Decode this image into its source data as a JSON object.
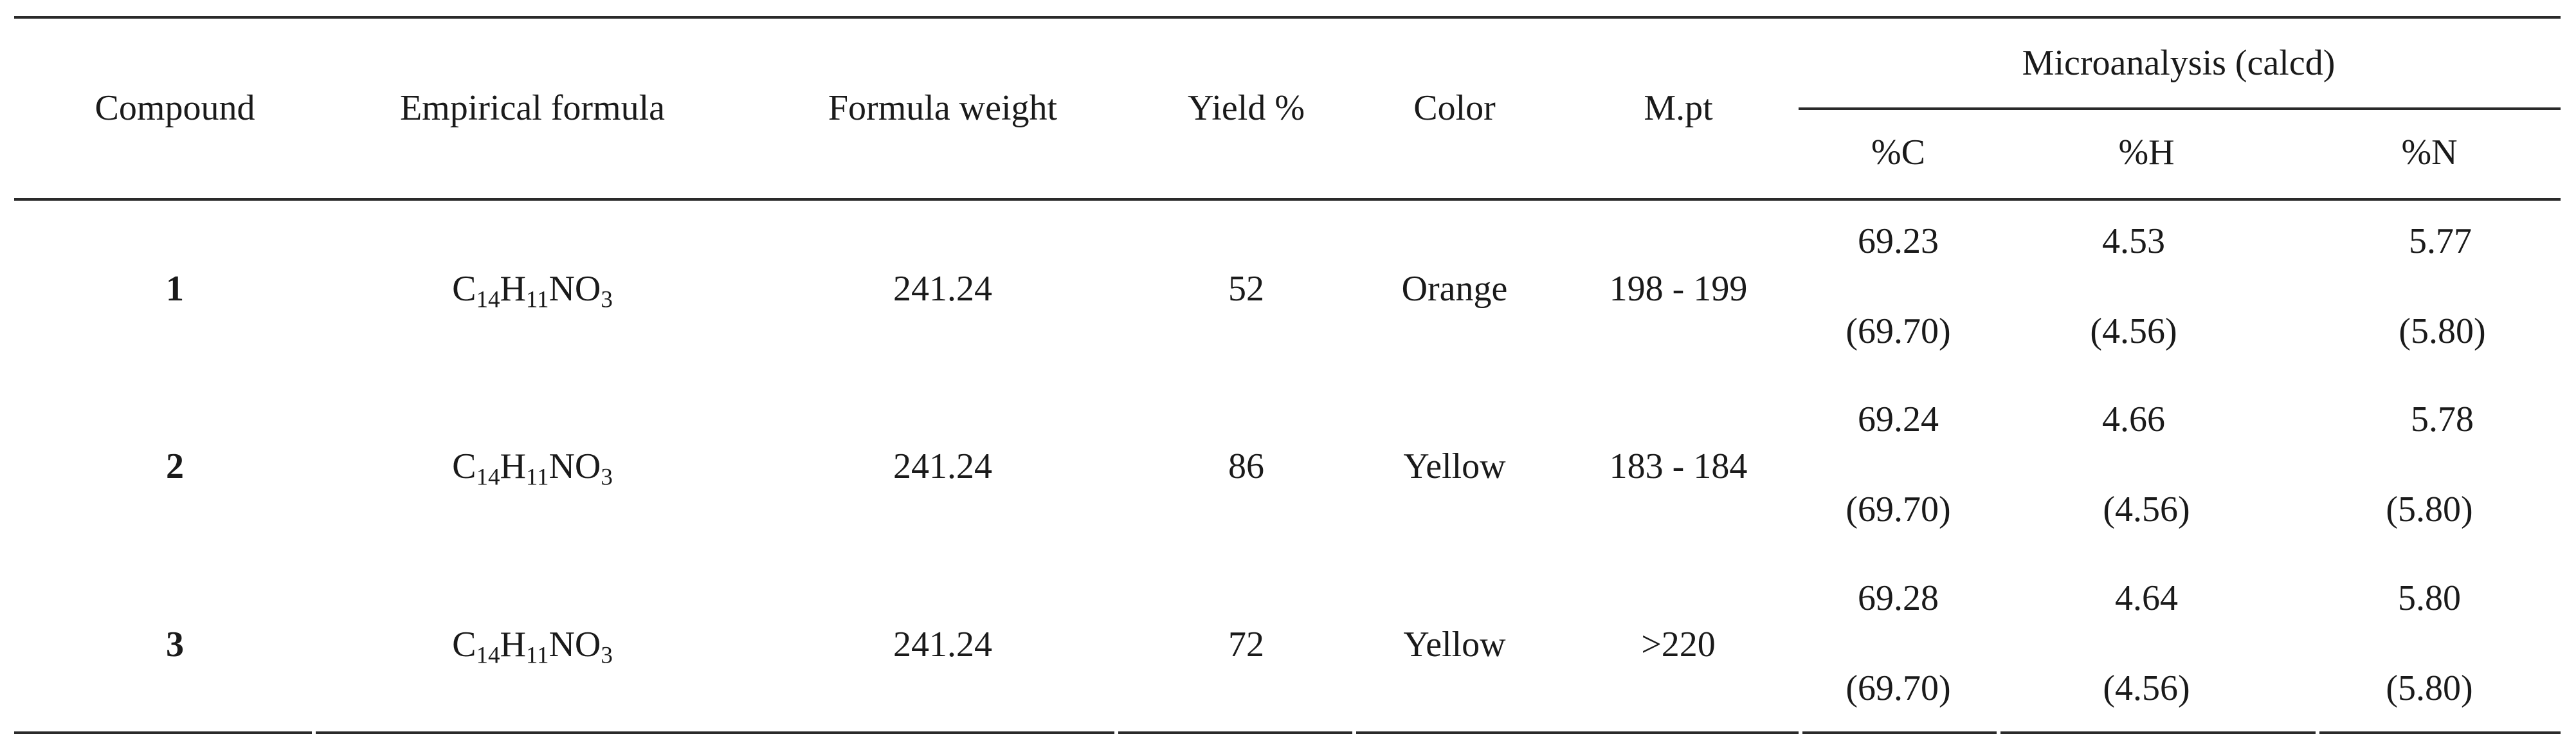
{
  "headers": {
    "compound": "Compound",
    "empirical_formula": "Empirical formula",
    "formula_weight": "Formula weight",
    "yield": "Yield %",
    "color": "Color",
    "mpt": "M.pt",
    "microanalysis": "Microanalysis (calcd)",
    "pct_c": "%C",
    "pct_h": "%H",
    "pct_n": "%N"
  },
  "rows": [
    {
      "compound": "1",
      "formula": {
        "c": "C",
        "c_sub": "14",
        "h": "H",
        "h_sub": "11",
        "n": "NO",
        "n_sub": "3"
      },
      "weight": "241.24",
      "yield": "52",
      "color": "Orange",
      "mpt": "198 - 199",
      "found": {
        "c": "69.23",
        "h": "4.53",
        "n": "5.77"
      },
      "calcd": {
        "c": "(69.70)",
        "h": "(4.56)",
        "n": "(5.80)"
      }
    },
    {
      "compound": "2",
      "formula": {
        "c": "C",
        "c_sub": "14",
        "h": "H",
        "h_sub": "11",
        "n": "NO",
        "n_sub": "3"
      },
      "weight": "241.24",
      "yield": "86",
      "color": "Yellow",
      "mpt": "183 - 184",
      "found": {
        "c": "69.24",
        "h": "4.66",
        "n": "5.78"
      },
      "calcd": {
        "c": "(69.70)",
        "h": "(4.56)",
        "n": "(5.80)"
      }
    },
    {
      "compound": "3",
      "formula": {
        "c": "C",
        "c_sub": "14",
        "h": "H",
        "h_sub": "11",
        "n": "NO",
        "n_sub": "3"
      },
      "weight": "241.24",
      "yield": "72",
      "color": "Yellow",
      "mpt": ">220",
      "found": {
        "c": "69.28",
        "h": "4.64",
        "n": "5.80"
      },
      "calcd": {
        "c": "(69.70)",
        "h": "(4.56)",
        "n": "(5.80)"
      }
    }
  ]
}
